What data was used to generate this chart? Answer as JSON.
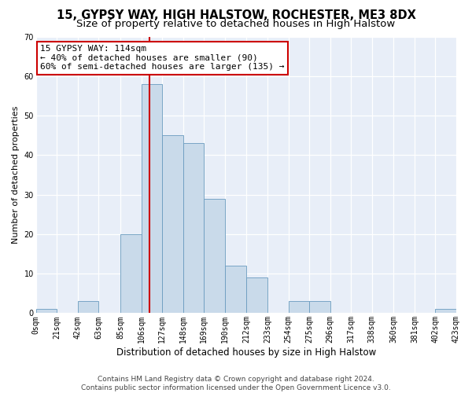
{
  "title1": "15, GYPSY WAY, HIGH HALSTOW, ROCHESTER, ME3 8DX",
  "title2": "Size of property relative to detached houses in High Halstow",
  "xlabel": "Distribution of detached houses by size in High Halstow",
  "ylabel": "Number of detached properties",
  "bin_edges": [
    0,
    21,
    42,
    63,
    85,
    106,
    127,
    148,
    169,
    190,
    212,
    233,
    254,
    275,
    296,
    317,
    338,
    360,
    381,
    402,
    423
  ],
  "counts": [
    1,
    0,
    3,
    0,
    20,
    58,
    45,
    43,
    29,
    12,
    9,
    0,
    3,
    3,
    0,
    0,
    0,
    0,
    0,
    1
  ],
  "bar_color": "#c9daea",
  "bar_edge_color": "#6a9bbf",
  "property_size": 114,
  "vline_color": "#cc0000",
  "annotation_text": "15 GYPSY WAY: 114sqm\n← 40% of detached houses are smaller (90)\n60% of semi-detached houses are larger (135) →",
  "annotation_box_color": "white",
  "annotation_box_edge_color": "#cc0000",
  "tick_labels": [
    "0sqm",
    "21sqm",
    "42sqm",
    "63sqm",
    "85sqm",
    "106sqm",
    "127sqm",
    "148sqm",
    "169sqm",
    "190sqm",
    "212sqm",
    "233sqm",
    "254sqm",
    "275sqm",
    "296sqm",
    "317sqm",
    "338sqm",
    "360sqm",
    "381sqm",
    "402sqm",
    "423sqm"
  ],
  "ylim": [
    0,
    70
  ],
  "yticks": [
    0,
    10,
    20,
    30,
    40,
    50,
    60,
    70
  ],
  "bg_color": "#e8eef8",
  "grid_color": "white",
  "footer": "Contains HM Land Registry data © Crown copyright and database right 2024.\nContains public sector information licensed under the Open Government Licence v3.0.",
  "title1_fontsize": 10.5,
  "title2_fontsize": 9.5,
  "xlabel_fontsize": 8.5,
  "ylabel_fontsize": 8,
  "tick_fontsize": 7,
  "annotation_fontsize": 8,
  "footer_fontsize": 6.5
}
